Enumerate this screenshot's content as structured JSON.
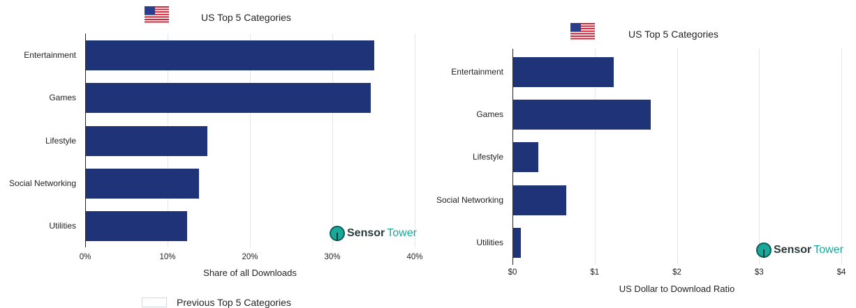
{
  "chart_data": [
    {
      "type": "bar",
      "orientation": "horizontal",
      "title": "US Top 5 Categories",
      "flag_icon": "us-flag-icon",
      "categories": [
        "Entertainment",
        "Games",
        "Lifestyle",
        "Social Networking",
        "Utilities"
      ],
      "values": [
        35.1,
        34.7,
        14.8,
        13.8,
        12.4
      ],
      "xlabel": "Share of all Downloads",
      "xlim": [
        0,
        40
      ],
      "xticks": [
        "0%",
        "10%",
        "20%",
        "30%",
        "40%"
      ],
      "bar_color": "#1f3478",
      "grid": true,
      "watermark": "SensorTower"
    },
    {
      "type": "bar",
      "orientation": "horizontal",
      "title": "US Top 5 Categories",
      "flag_icon": "us-flag-icon",
      "categories": [
        "Entertainment",
        "Games",
        "Lifestyle",
        "Social Networking",
        "Utilities"
      ],
      "values": [
        1.23,
        1.68,
        0.31,
        0.65,
        0.1
      ],
      "xlabel": "US Dollar to Download Ratio",
      "xlim": [
        0,
        4
      ],
      "xticks": [
        "$0",
        "$1",
        "$2",
        "$3",
        "$4"
      ],
      "bar_color": "#1f3478",
      "grid": true,
      "watermark": "SensorTower"
    }
  ],
  "logo": {
    "part1": "Sensor",
    "part2": "Tower"
  },
  "legend": {
    "label": "Previous Top 5 Categories"
  }
}
